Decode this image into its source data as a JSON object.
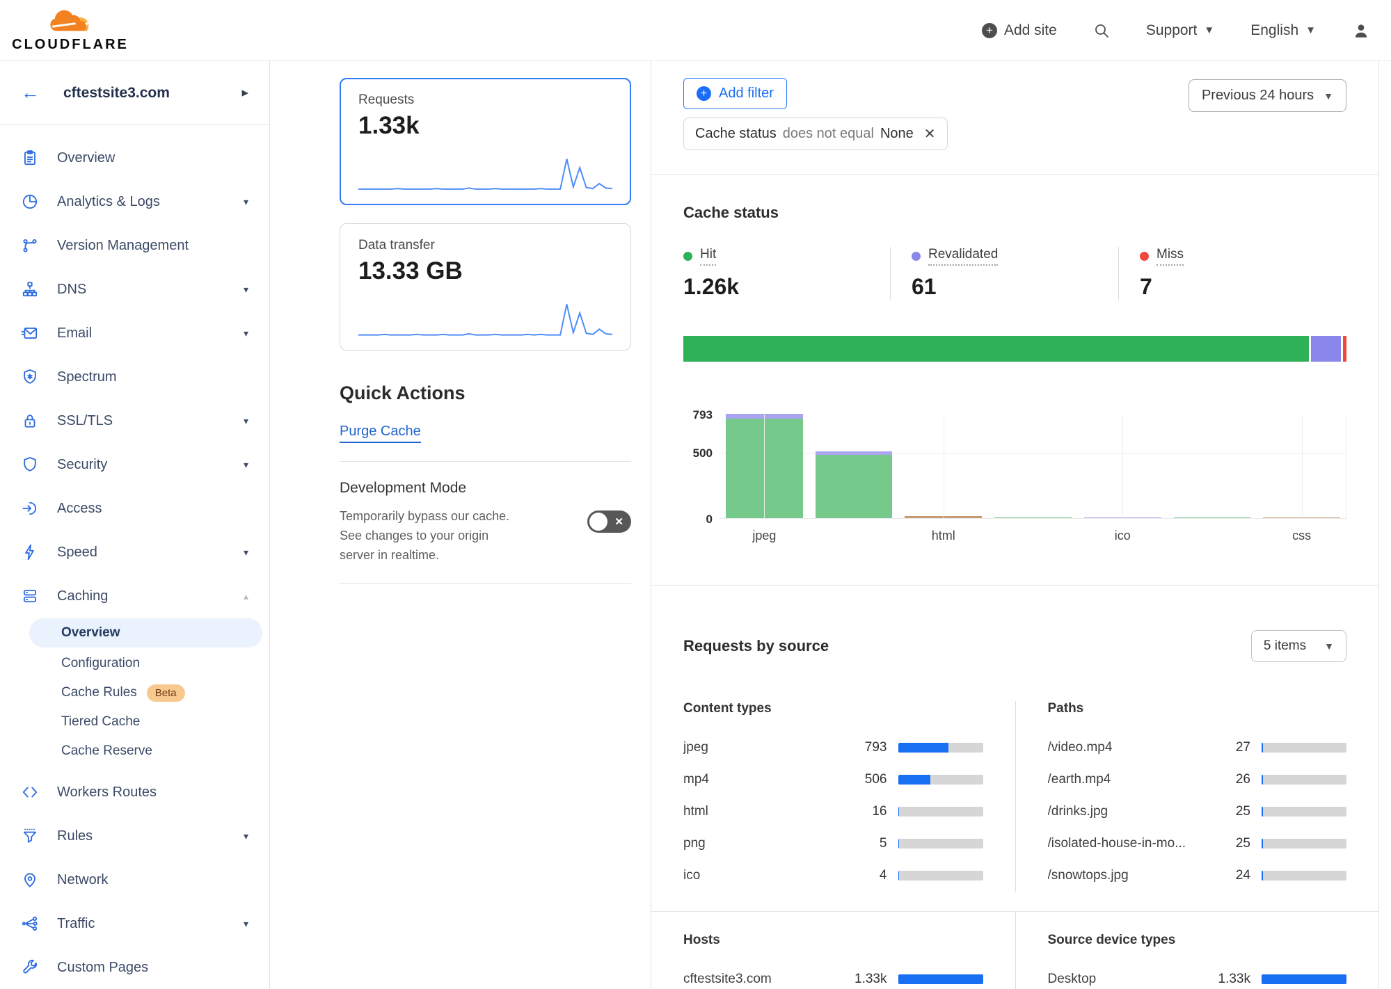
{
  "topbar": {
    "brand": "CLOUDFLARE",
    "add_site_label": "Add site",
    "support_label": "Support",
    "language_label": "English"
  },
  "sidebar": {
    "site_name": "cftestsite3.com",
    "items": [
      {
        "key": "overview",
        "label": "Overview",
        "icon": "clipboard-icon",
        "caret": false
      },
      {
        "key": "analytics-logs",
        "label": "Analytics & Logs",
        "icon": "pie-chart-icon",
        "caret": true
      },
      {
        "key": "version-management",
        "label": "Version Management",
        "icon": "branch-icon",
        "caret": false
      },
      {
        "key": "dns",
        "label": "DNS",
        "icon": "dns-tree-icon",
        "caret": true
      },
      {
        "key": "email",
        "label": "Email",
        "icon": "envelope-icon",
        "caret": true
      },
      {
        "key": "spectrum",
        "label": "Spectrum",
        "icon": "shield-star-icon",
        "caret": false
      },
      {
        "key": "ssl-tls",
        "label": "SSL/TLS",
        "icon": "lock-icon",
        "caret": true
      },
      {
        "key": "security",
        "label": "Security",
        "icon": "shield-icon",
        "caret": true
      },
      {
        "key": "access",
        "label": "Access",
        "icon": "login-arrow-icon",
        "caret": false
      },
      {
        "key": "speed",
        "label": "Speed",
        "icon": "lightning-icon",
        "caret": true
      },
      {
        "key": "caching",
        "label": "Caching",
        "icon": "server-stack-icon",
        "caret": true,
        "expanded": true,
        "children": [
          {
            "label": "Overview",
            "active": true
          },
          {
            "label": "Configuration"
          },
          {
            "label": "Cache Rules",
            "badge": "Beta"
          },
          {
            "label": "Tiered Cache"
          },
          {
            "label": "Cache Reserve"
          }
        ]
      },
      {
        "key": "workers-routes",
        "label": "Workers Routes",
        "icon": "code-brackets-icon",
        "caret": false
      },
      {
        "key": "rules",
        "label": "Rules",
        "icon": "funnel-icon",
        "caret": true
      },
      {
        "key": "network",
        "label": "Network",
        "icon": "map-pin-icon",
        "caret": false
      },
      {
        "key": "traffic",
        "label": "Traffic",
        "icon": "share-nodes-icon",
        "caret": true
      },
      {
        "key": "custom-pages",
        "label": "Custom Pages",
        "icon": "wrench-icon",
        "caret": false
      }
    ]
  },
  "metrics": {
    "requests": {
      "label": "Requests",
      "value": "1.33k",
      "selected": true
    },
    "data_transfer": {
      "label": "Data transfer",
      "value": "13.33 GB",
      "selected": false
    }
  },
  "quick_actions": {
    "title": "Quick Actions",
    "purge_cache_label": "Purge Cache",
    "dev_mode": {
      "title": "Development Mode",
      "description": "Temporarily bypass our cache. See changes to your origin server in realtime.",
      "enabled": false
    }
  },
  "filter_bar": {
    "add_filter_label": "Add filter",
    "chip": {
      "field": "Cache status",
      "operator": "does not equal",
      "value": "None"
    },
    "time_range_label": "Previous 24 hours"
  },
  "cache_status": {
    "title": "Cache status"
  },
  "requests_by_source": {
    "title": "Requests by source",
    "items_selector_label": "5 items",
    "content_types_title": "Content types",
    "paths_title": "Paths",
    "hosts_title": "Hosts",
    "devices_title": "Source device types"
  },
  "colors": {
    "accent_blue": "#1a6ef5",
    "hbar_blue": "#186ff2",
    "hit_green": "#2eb158",
    "revalidated_purple": "#8b87ea",
    "miss_red": "#f0483c",
    "bar_green": "#74c98b",
    "bar_purple": "#a9a5ef",
    "bar_tan": "#c49b72",
    "track_gray": "#d6d6d6",
    "sparkline_blue": "#4f8df8"
  },
  "chart_data": [
    {
      "id": "requests-sparkline",
      "type": "line",
      "metric": "Requests",
      "total_display": "1.33k",
      "x": "time, previous 24 hours",
      "values": [
        3,
        3,
        3,
        3,
        3,
        3,
        4,
        3,
        3,
        3,
        3,
        3,
        4,
        3,
        3,
        3,
        3,
        5,
        3,
        3,
        3,
        4,
        3,
        3,
        3,
        3,
        3,
        3,
        4,
        3,
        3,
        3,
        58,
        7,
        42,
        6,
        4,
        13,
        5,
        4
      ]
    },
    {
      "id": "data-transfer-sparkline",
      "type": "line",
      "metric": "Data transfer",
      "total_display": "13.33 GB",
      "x": "time, previous 24 hours",
      "values": [
        2,
        2,
        2,
        2,
        3,
        2,
        2,
        2,
        2,
        3,
        2,
        2,
        2,
        3,
        2,
        2,
        2,
        4,
        2,
        2,
        2,
        3,
        2,
        2,
        2,
        2,
        3,
        2,
        3,
        2,
        2,
        2,
        55,
        6,
        40,
        5,
        3,
        12,
        4,
        3
      ]
    },
    {
      "id": "cache-status-totals",
      "type": "stacked-bar",
      "title": "Cache status",
      "segments": [
        {
          "label": "Hit",
          "value": 1263,
          "display": "1.26k",
          "color_key": "hit_green"
        },
        {
          "label": "Revalidated",
          "value": 61,
          "display": "61",
          "color_key": "revalidated_purple"
        },
        {
          "label": "Miss",
          "value": 7,
          "display": "7",
          "color_key": "miss_red"
        }
      ]
    },
    {
      "id": "cache-status-by-content-type",
      "type": "bar",
      "stacked": true,
      "ylim": [
        0,
        793
      ],
      "yticks": [
        793,
        500,
        0
      ],
      "x_labels_shown": [
        "jpeg",
        "html",
        "ico",
        "css"
      ],
      "bars": [
        {
          "label": "jpeg",
          "show_label": true,
          "segments": [
            {
              "color_key": "bar_green",
              "value": 758
            },
            {
              "color_key": "bar_purple",
              "value": 35
            }
          ]
        },
        {
          "label": "mp4",
          "show_label": false,
          "segments": [
            {
              "color_key": "bar_green",
              "value": 481
            },
            {
              "color_key": "bar_purple",
              "value": 25
            }
          ]
        },
        {
          "label": "html",
          "show_label": true,
          "segments": [
            {
              "color_key": "bar_tan",
              "value": 16
            }
          ]
        },
        {
          "label": "png",
          "show_label": false,
          "segments": [
            {
              "color_key": "bar_green",
              "value": 5
            }
          ]
        },
        {
          "label": "ico",
          "show_label": true,
          "segments": [
            {
              "color_key": "bar_purple",
              "value": 4
            }
          ]
        },
        {
          "label": "",
          "show_label": false,
          "segments": [
            {
              "color_key": "bar_green",
              "value": 2
            }
          ]
        },
        {
          "label": "css",
          "show_label": true,
          "segments": [
            {
              "color_key": "bar_tan",
              "value": 1
            }
          ]
        }
      ]
    },
    {
      "id": "content-types",
      "type": "bar",
      "orientation": "horizontal",
      "max": 1330,
      "items": [
        {
          "label": "jpeg",
          "value": 793,
          "display": "793"
        },
        {
          "label": "mp4",
          "value": 506,
          "display": "506"
        },
        {
          "label": "html",
          "value": 16,
          "display": "16"
        },
        {
          "label": "png",
          "value": 5,
          "display": "5"
        },
        {
          "label": "ico",
          "value": 4,
          "display": "4"
        }
      ]
    },
    {
      "id": "paths",
      "type": "bar",
      "orientation": "horizontal",
      "max": 1330,
      "items": [
        {
          "label": "/video.mp4",
          "value": 27,
          "display": "27"
        },
        {
          "label": "/earth.mp4",
          "value": 26,
          "display": "26"
        },
        {
          "label": "/drinks.jpg",
          "value": 25,
          "display": "25"
        },
        {
          "label": "/isolated-house-in-mo...",
          "value": 25,
          "display": "25"
        },
        {
          "label": "/snowtops.jpg",
          "value": 24,
          "display": "24"
        }
      ]
    },
    {
      "id": "hosts",
      "type": "bar",
      "orientation": "horizontal",
      "max": 1330,
      "items": [
        {
          "label": "cftestsite3.com",
          "value": 1330,
          "display": "1.33k"
        }
      ]
    },
    {
      "id": "devices",
      "type": "bar",
      "orientation": "horizontal",
      "max": 1330,
      "items": [
        {
          "label": "Desktop",
          "value": 1330,
          "display": "1.33k"
        }
      ]
    }
  ]
}
